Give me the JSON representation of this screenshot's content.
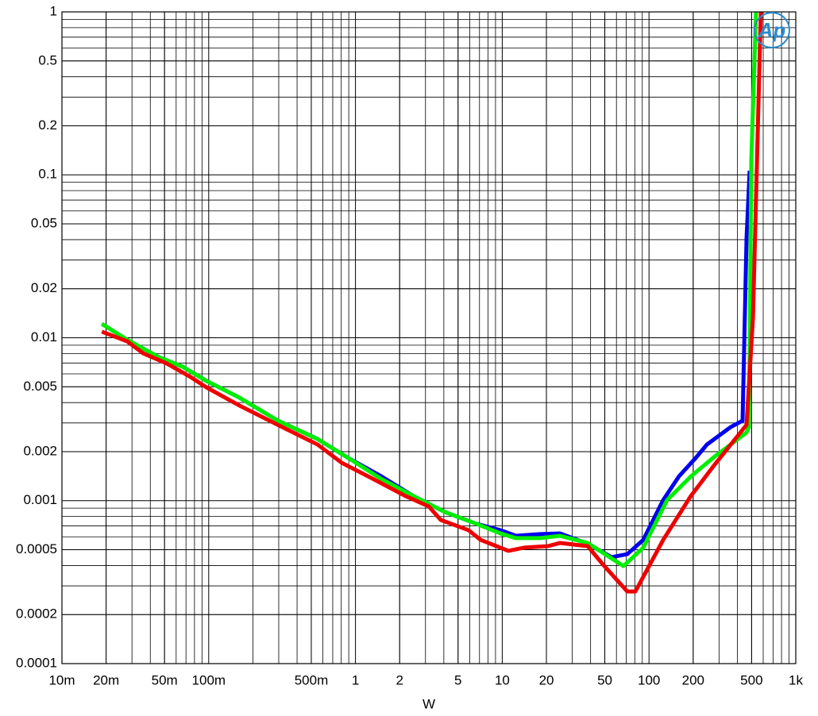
{
  "chart_data": {
    "type": "line",
    "x_label": "W",
    "logo": "Ap",
    "log_x": true,
    "log_y": true,
    "grid": true,
    "minor_grid": true,
    "xlim": [
      0.01,
      1000
    ],
    "ylim": [
      0.0001,
      1
    ],
    "xticks": [
      {
        "value": 0.01,
        "label": "10m"
      },
      {
        "value": 0.02,
        "label": "20m"
      },
      {
        "value": 0.05,
        "label": "50m"
      },
      {
        "value": 0.1,
        "label": "100m"
      },
      {
        "value": 0.5,
        "label": "500m"
      },
      1,
      2,
      5,
      10,
      20,
      50,
      100,
      200,
      500,
      {
        "value": 1000,
        "label": "1k"
      }
    ],
    "yticks": [
      1,
      0.5,
      0.2,
      0.1,
      0.05,
      0.02,
      0.01,
      0.005,
      0.002,
      0.001,
      0.0005,
      0.0002,
      0.0001
    ],
    "series": [
      {
        "color": "#0000ee",
        "x": [
          0.0187,
          0.0278,
          0.0457,
          0.0665,
          0.0966,
          0.159,
          0.296,
          0.552,
          0.91,
          1.5,
          2.47,
          4.06,
          6.68,
          9.71,
          12.4,
          18.1,
          24.7,
          38.2,
          55.6,
          71.2,
          91.4,
          125,
          160,
          206,
          248,
          360,
          434,
          462,
          485
        ],
        "values": [
          0.01217,
          0.00973,
          0.0076,
          0.00664,
          0.00543,
          0.00433,
          0.0031,
          0.00239,
          0.00181,
          0.00141,
          0.00107,
          0.000853,
          0.000721,
          0.000659,
          0.000609,
          0.000623,
          0.00063,
          0.000544,
          0.00045,
          0.00047,
          0.000575,
          0.00101,
          0.00141,
          0.00181,
          0.00221,
          0.00283,
          0.0031,
          0.0409,
          0.106
        ]
      },
      {
        "color": "#00ee00",
        "x": [
          0.0187,
          0.0278,
          0.0457,
          0.0665,
          0.0966,
          0.159,
          0.296,
          0.552,
          0.91,
          1.5,
          2.47,
          4.06,
          6.68,
          9.71,
          12.4,
          18.1,
          24.7,
          38.2,
          67.0,
          91.4,
          133,
          193,
          281,
          462,
          480,
          498,
          536
        ],
        "values": [
          0.01217,
          0.00973,
          0.0076,
          0.00664,
          0.00543,
          0.00433,
          0.0031,
          0.00239,
          0.00181,
          0.00136,
          0.00107,
          0.000853,
          0.000721,
          0.00063,
          0.000589,
          0.000589,
          0.000609,
          0.00055,
          0.000397,
          0.000515,
          0.00101,
          0.00141,
          0.00187,
          0.00262,
          0.00283,
          0.125,
          1
        ]
      },
      {
        "color": "#ee0000",
        "x": [
          0.0187,
          0.0278,
          0.0357,
          0.0518,
          0.0753,
          0.0966,
          0.159,
          0.296,
          0.552,
          0.804,
          1.32,
          2.18,
          3.16,
          3.81,
          5.9,
          7.11,
          11.0,
          14.1,
          20.5,
          24.7,
          38.2,
          49.0,
          71.2,
          80.7,
          125,
          193,
          281,
          462,
          511,
          578
        ],
        "values": [
          0.0109,
          0.00951,
          0.00803,
          0.00695,
          0.00574,
          0.00496,
          0.00387,
          0.00292,
          0.00221,
          0.00171,
          0.00136,
          0.00107,
          0.000922,
          0.000762,
          0.000659,
          0.000575,
          0.000492,
          0.000515,
          0.000526,
          0.00055,
          0.000526,
          0.000402,
          0.000277,
          0.000277,
          0.000575,
          0.00107,
          0.00167,
          0.00292,
          0.0133,
          1
        ]
      }
    ]
  }
}
